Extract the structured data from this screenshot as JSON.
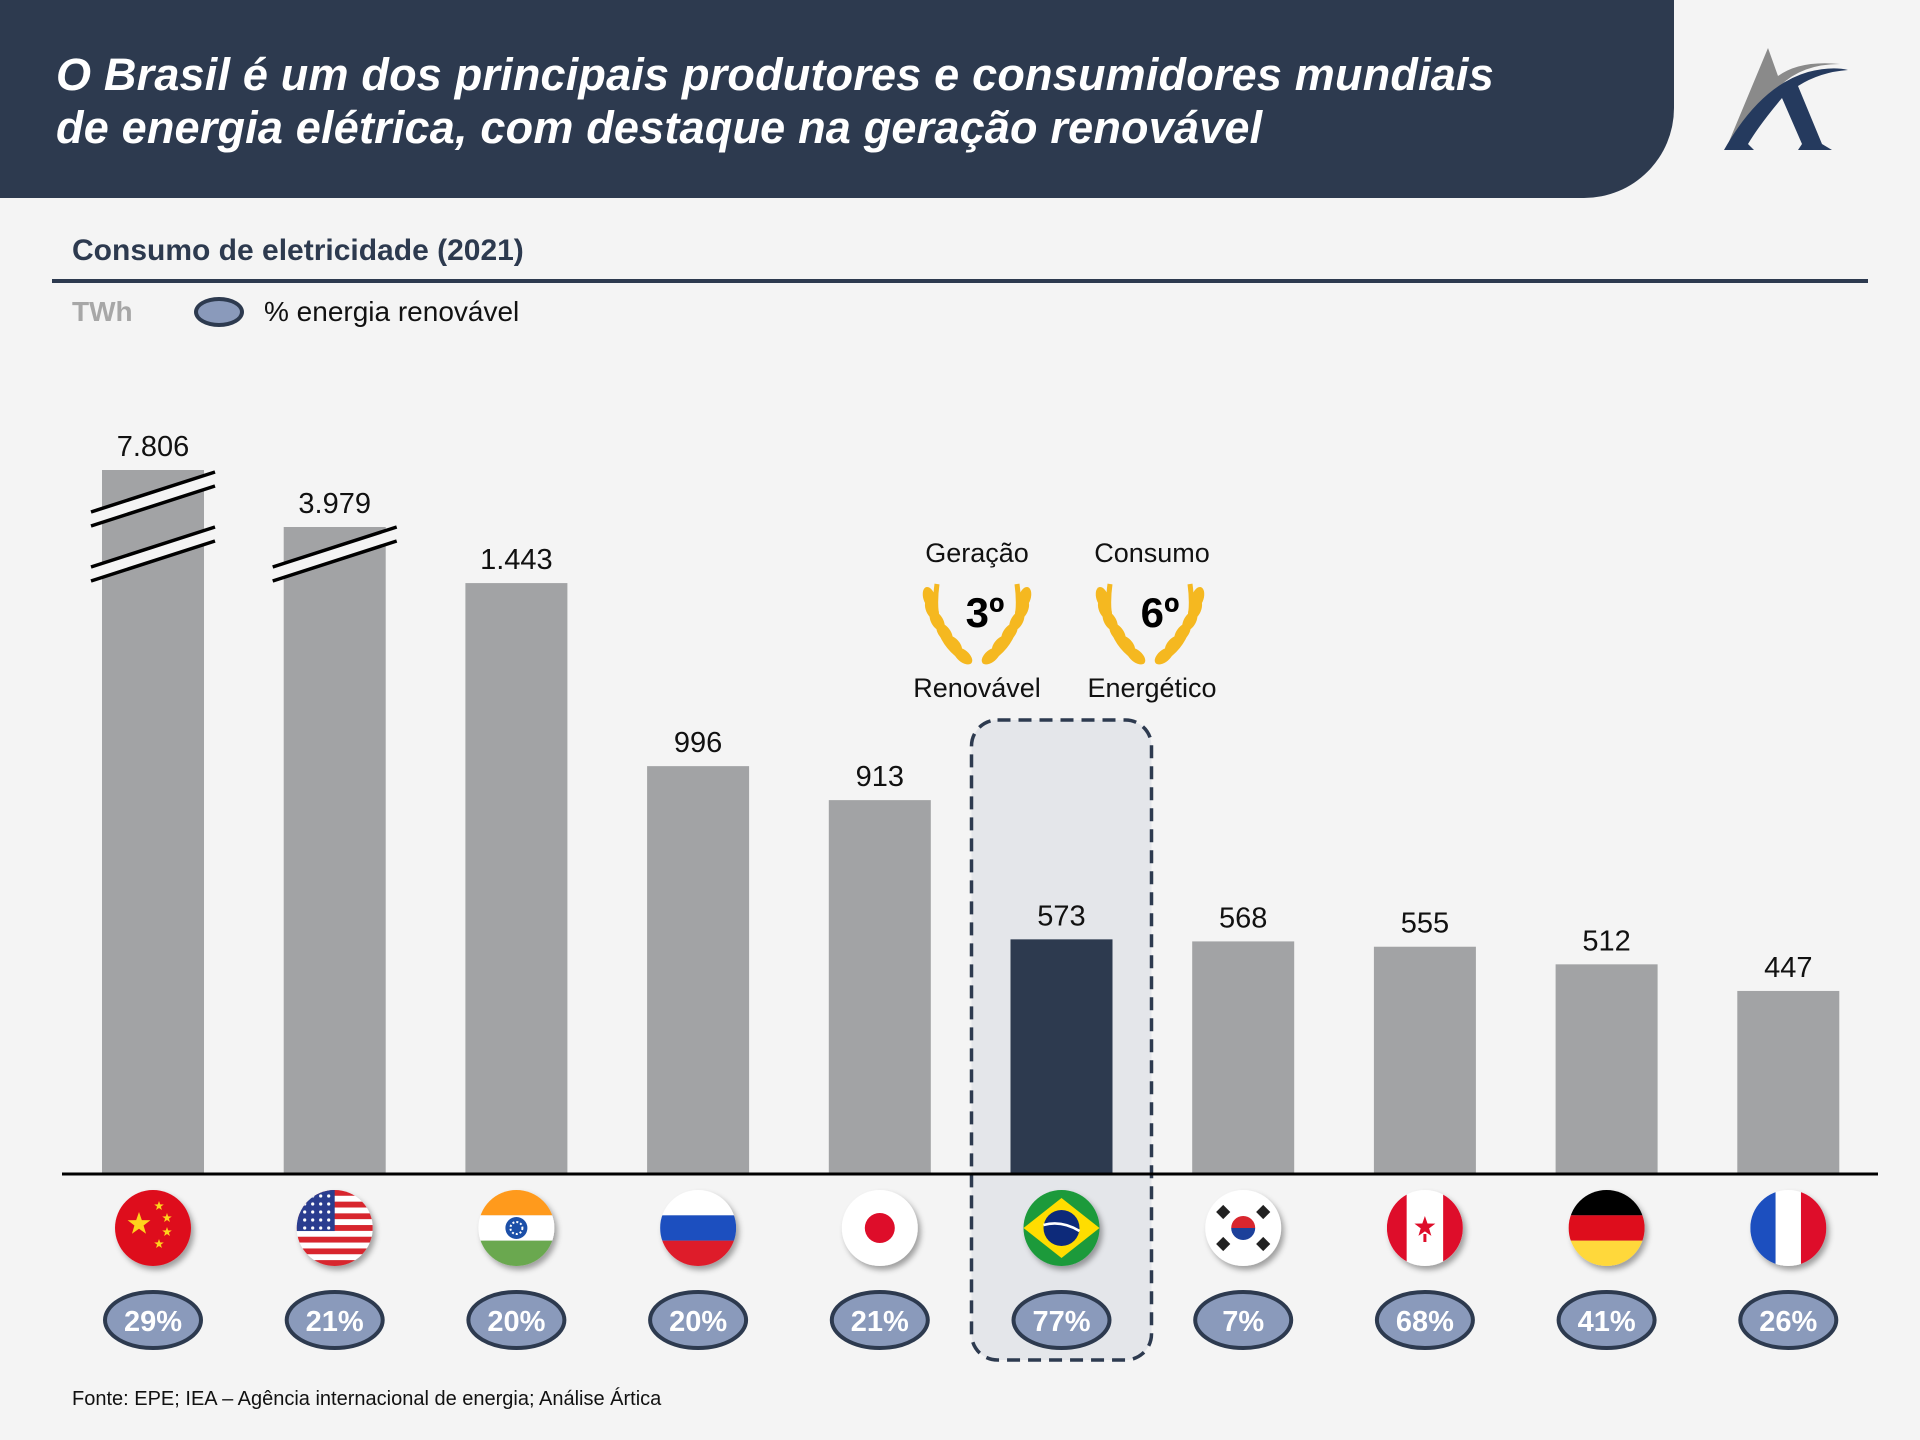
{
  "header": {
    "title_line1": "O Brasil é um dos principais produtores e consumidores mundiais",
    "title_line2": "de energia elétrica, com destaque na geração renovável",
    "logo_icon": "artica-logo"
  },
  "colors": {
    "brand_navy": "#2d3a4f",
    "bar_gray": "#a2a3a5",
    "highlight_bar": "#2d3a4f",
    "renewable_badge": "#8a9abb",
    "laurel_gold": "#f5b820",
    "highlight_box": "#e4e6ea"
  },
  "section": {
    "title": "Consumo de eletricidade (2021)",
    "unit": "TWh",
    "legend_label": "% energia renovável"
  },
  "rankings": [
    {
      "top": "Geração",
      "rank": "3º",
      "bottom": "Renovável"
    },
    {
      "top": "Consumo",
      "rank": "6º",
      "bottom": "Energético"
    }
  ],
  "source": "Fonte: EPE; IEA – Agência internacional de energia; Análise Ártica",
  "chart_data": {
    "type": "bar",
    "title": "Consumo de eletricidade (2021)",
    "xlabel": "",
    "ylabel": "TWh",
    "grid": false,
    "legend": "top-left",
    "categories": [
      "China",
      "Estados Unidos",
      "Índia",
      "Rússia",
      "Japão",
      "Brasil",
      "Coreia do Sul",
      "Canadá",
      "Alemanha",
      "França"
    ],
    "values": [
      7806,
      3979,
      1443,
      996,
      913,
      573,
      568,
      555,
      512,
      447
    ],
    "value_labels": [
      "7.806",
      "3.979",
      "1.443",
      "996",
      "913",
      "573",
      "568",
      "555",
      "512",
      "447"
    ],
    "broken_axis_bars": [
      "China",
      "Estados Unidos"
    ],
    "highlighted": "Brasil",
    "series": [
      {
        "name": "Consumo (TWh)",
        "values": [
          7806,
          3979,
          1443,
          996,
          913,
          573,
          568,
          555,
          512,
          447
        ]
      },
      {
        "name": "% energia renovável",
        "values": [
          29,
          21,
          20,
          20,
          21,
          77,
          7,
          68,
          41,
          26
        ]
      }
    ],
    "renewable_labels": [
      "29%",
      "21%",
      "20%",
      "20%",
      "21%",
      "77%",
      "7%",
      "68%",
      "41%",
      "26%"
    ],
    "flags": [
      "china-flag",
      "usa-flag",
      "india-flag",
      "russia-flag",
      "japan-flag",
      "brazil-flag",
      "south-korea-flag",
      "canada-flag",
      "germany-flag",
      "france-flag"
    ]
  }
}
